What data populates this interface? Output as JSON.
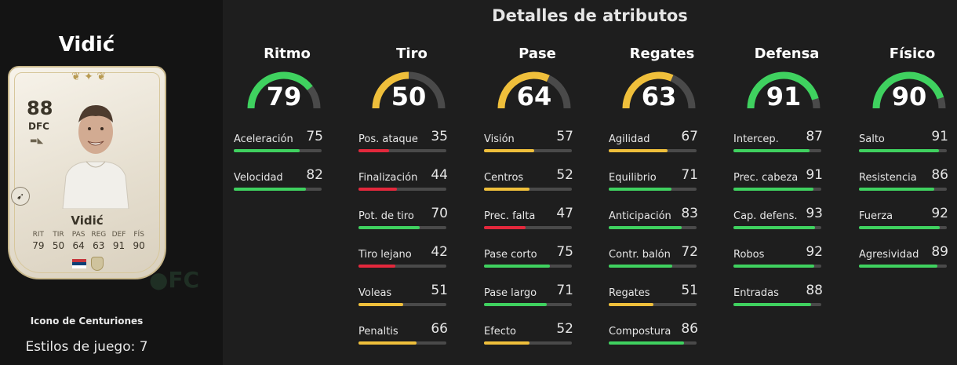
{
  "player": {
    "name": "Vidić",
    "card_name": "Vidić",
    "rating": "88",
    "position": "DFC",
    "card_type": "Icono de Centuriones",
    "playstyles": "Estilos de juego: 7",
    "card_stats": [
      {
        "label": "RIT",
        "value": "79"
      },
      {
        "label": "TIR",
        "value": "50"
      },
      {
        "label": "PAS",
        "value": "64"
      },
      {
        "label": "REG",
        "value": "63"
      },
      {
        "label": "DEF",
        "value": "91"
      },
      {
        "label": "FÍS",
        "value": "90"
      }
    ]
  },
  "section_title": "Detalles de atributos",
  "colors": {
    "green": "#3fd15f",
    "yellow": "#efbf3b",
    "red": "#e3283c",
    "track": "#4a4a4a"
  },
  "categories": [
    {
      "name": "Ritmo",
      "value": "79",
      "attrs": [
        {
          "label": "Aceleración",
          "value": "75"
        },
        {
          "label": "Velocidad",
          "value": "82"
        }
      ]
    },
    {
      "name": "Tiro",
      "value": "50",
      "attrs": [
        {
          "label": "Pos. ataque",
          "value": "35"
        },
        {
          "label": "Finalización",
          "value": "44"
        },
        {
          "label": "Pot. de tiro",
          "value": "70"
        },
        {
          "label": "Tiro lejano",
          "value": "42"
        },
        {
          "label": "Voleas",
          "value": "51"
        },
        {
          "label": "Penaltis",
          "value": "66"
        }
      ]
    },
    {
      "name": "Pase",
      "value": "64",
      "attrs": [
        {
          "label": "Visión",
          "value": "57"
        },
        {
          "label": "Centros",
          "value": "52"
        },
        {
          "label": "Prec. falta",
          "value": "47"
        },
        {
          "label": "Pase corto",
          "value": "75"
        },
        {
          "label": "Pase largo",
          "value": "71"
        },
        {
          "label": "Efecto",
          "value": "52"
        }
      ]
    },
    {
      "name": "Regates",
      "value": "63",
      "attrs": [
        {
          "label": "Agilidad",
          "value": "67"
        },
        {
          "label": "Equilibrio",
          "value": "71"
        },
        {
          "label": "Anticipación",
          "value": "83"
        },
        {
          "label": "Contr. balón",
          "value": "72"
        },
        {
          "label": "Regates",
          "value": "51"
        },
        {
          "label": "Compostura",
          "value": "86"
        }
      ]
    },
    {
      "name": "Defensa",
      "value": "91",
      "attrs": [
        {
          "label": "Intercep.",
          "value": "87"
        },
        {
          "label": "Prec. cabeza",
          "value": "91"
        },
        {
          "label": "Cap. defens.",
          "value": "93"
        },
        {
          "label": "Robos",
          "value": "92"
        },
        {
          "label": "Entradas",
          "value": "88"
        }
      ]
    },
    {
      "name": "Físico",
      "value": "90",
      "attrs": [
        {
          "label": "Salto",
          "value": "91"
        },
        {
          "label": "Resistencia",
          "value": "86"
        },
        {
          "label": "Fuerza",
          "value": "92"
        },
        {
          "label": "Agresividad",
          "value": "89"
        }
      ]
    }
  ]
}
